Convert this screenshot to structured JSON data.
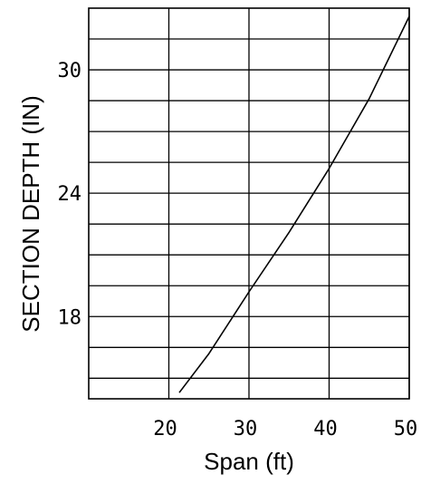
{
  "chart_data": {
    "type": "line",
    "title": "",
    "xlabel": "Span (ft)",
    "ylabel": "SECTION DEPTH (IN)",
    "xlim": [
      10,
      50
    ],
    "ylim": [
      14,
      33
    ],
    "x_ticks": [
      20,
      30,
      40,
      50
    ],
    "x_tick_labels": [
      "20",
      "30",
      "40",
      "50"
    ],
    "y_ticks": [
      18,
      24,
      30
    ],
    "y_tick_labels": [
      "18",
      "24",
      "30"
    ],
    "x_gridlines": [
      20,
      30,
      40,
      50
    ],
    "y_gridlines": [
      15,
      16.5,
      18,
      19.5,
      21,
      22.5,
      24,
      25.5,
      27,
      28.5,
      30,
      31.5
    ],
    "grid": true,
    "legend": "none",
    "colors": {
      "line": "#000000",
      "grid": "#000000",
      "background": "#ffffff"
    },
    "series": [
      {
        "x": [
          21.3,
          25,
          30,
          35,
          40,
          45,
          50
        ],
        "y": [
          14.3,
          16.2,
          19.2,
          22.1,
          25.2,
          28.6,
          32.6
        ]
      }
    ]
  }
}
